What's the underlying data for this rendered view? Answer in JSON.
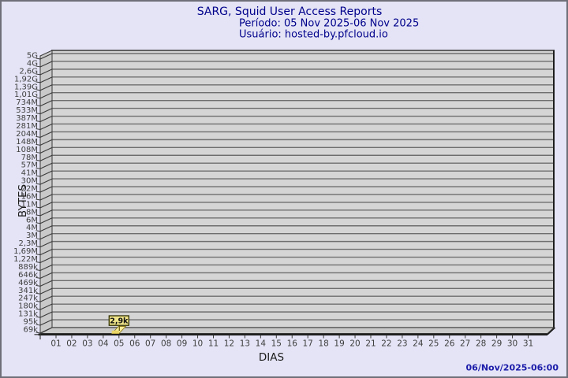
{
  "header": {
    "title": "SARG, Squid User Access Reports",
    "period": "Período: 05 Nov 2025-06 Nov 2025",
    "user": "Usuário: hosted-by.pfcloud.io"
  },
  "footer": {
    "timestamp": "06/Nov/2025-06:00"
  },
  "chart_data": {
    "type": "bar",
    "title": "SARG, Squid User Access Reports",
    "subtitle": "Período: 05 Nov 2025-06 Nov 2025 — Usuário: hosted-by.pfcloud.io",
    "xlabel": "DIAS",
    "ylabel": "BYTES",
    "x_categories": [
      "01",
      "02",
      "03",
      "04",
      "05",
      "06",
      "07",
      "08",
      "09",
      "10",
      "11",
      "12",
      "13",
      "14",
      "15",
      "16",
      "17",
      "18",
      "19",
      "20",
      "21",
      "22",
      "23",
      "24",
      "25",
      "26",
      "27",
      "28",
      "29",
      "30",
      "31"
    ],
    "y_tick_labels": [
      "5G",
      "4G",
      "2,6G",
      "1,92G",
      "1,39G",
      "1,01G",
      "734M",
      "533M",
      "387M",
      "281M",
      "204M",
      "148M",
      "108M",
      "78M",
      "57M",
      "41M",
      "30M",
      "22M",
      "16M",
      "11M",
      "8M",
      "6M",
      "4M",
      "3M",
      "2,3M",
      "1,69M",
      "1,22M",
      "889k",
      "646k",
      "469k",
      "341k",
      "247k",
      "180k",
      "131k",
      "95k",
      "69k"
    ],
    "y_scale": "logarithmic",
    "grid": true,
    "legend": "none",
    "points": [
      {
        "day": "05",
        "label": "2,9k",
        "approx_bytes": 2900
      }
    ]
  },
  "colors": {
    "background": "#e4e4f6",
    "frame": "#6f6f79",
    "panel": "#d5d5d5",
    "panel_side": "#c9c9c9",
    "gridline": "#6e6e6e",
    "axis": "#3a3a3a",
    "edge_dark": "#1e1e1e",
    "title_text": "#00008b",
    "timestamp_text": "#1c1caa",
    "tick_text": "#3f3f3f",
    "axis_title_text": "#1c1c1c",
    "bar_fill": "#f8ec9a",
    "bar_front": "#e9d568",
    "bar_edge": "#8f7d1e",
    "leader": "#6b5d10",
    "label_box_fill": "#f0e58a",
    "label_box_border": "#2e2e00",
    "label_text": "#111111"
  }
}
